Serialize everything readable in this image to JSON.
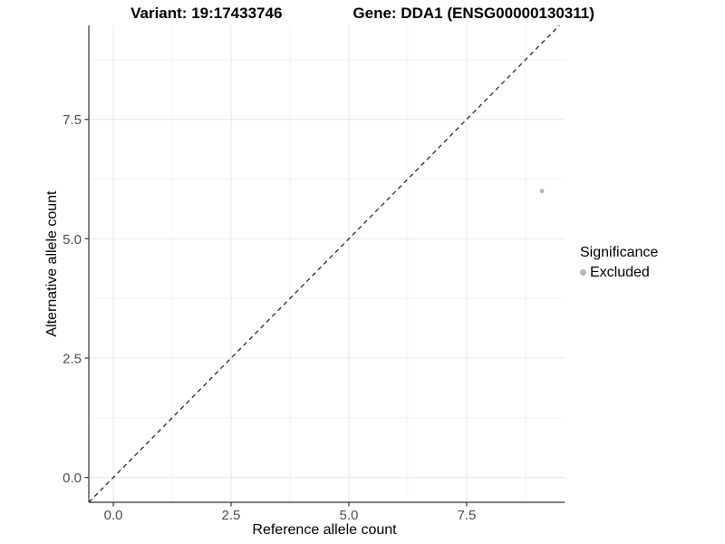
{
  "chart_data": {
    "type": "scatter",
    "title_left": "Variant: 19:17433746",
    "title_right": "Gene: DDA1 (ENSG00000130311)",
    "xlabel": "Reference allele count",
    "ylabel": "Alternative allele count",
    "xlim": [
      -0.52,
      9.58
    ],
    "ylim": [
      -0.52,
      9.47
    ],
    "x_ticks": [
      0,
      2.5,
      5,
      7.5
    ],
    "y_ticks": [
      0,
      2.5,
      5,
      7.5
    ],
    "x_tick_labels": [
      "0.0",
      "2.5",
      "5.0",
      "7.5"
    ],
    "y_tick_labels": [
      "0.0",
      "2.5",
      "5.0",
      "7.5"
    ],
    "x_minor_ticks": [
      1.25,
      3.75,
      6.25,
      8.75
    ],
    "y_minor_ticks": [
      1.25,
      3.75,
      6.25,
      8.75
    ],
    "grid": true,
    "identity_line": {
      "style": "dashed",
      "slope": 1,
      "intercept": 0,
      "color": "#1a1a1a"
    },
    "series": [
      {
        "name": "Excluded",
        "color": "#b5b5b5",
        "points": [
          {
            "x": 9.1,
            "y": 6.0
          }
        ]
      }
    ],
    "legend": {
      "position": "right",
      "title": "Significance",
      "items": [
        {
          "label": "Excluded",
          "color": "#b5b5b5"
        }
      ]
    },
    "colors": {
      "grid_major": "#e8e8e8",
      "grid_minor": "#f2f2f2",
      "axis_line": "#333333",
      "tick_mark": "#333333",
      "tick_text": "#4d4d4d",
      "point": "#b5b5b5",
      "background": "#ffffff"
    }
  }
}
